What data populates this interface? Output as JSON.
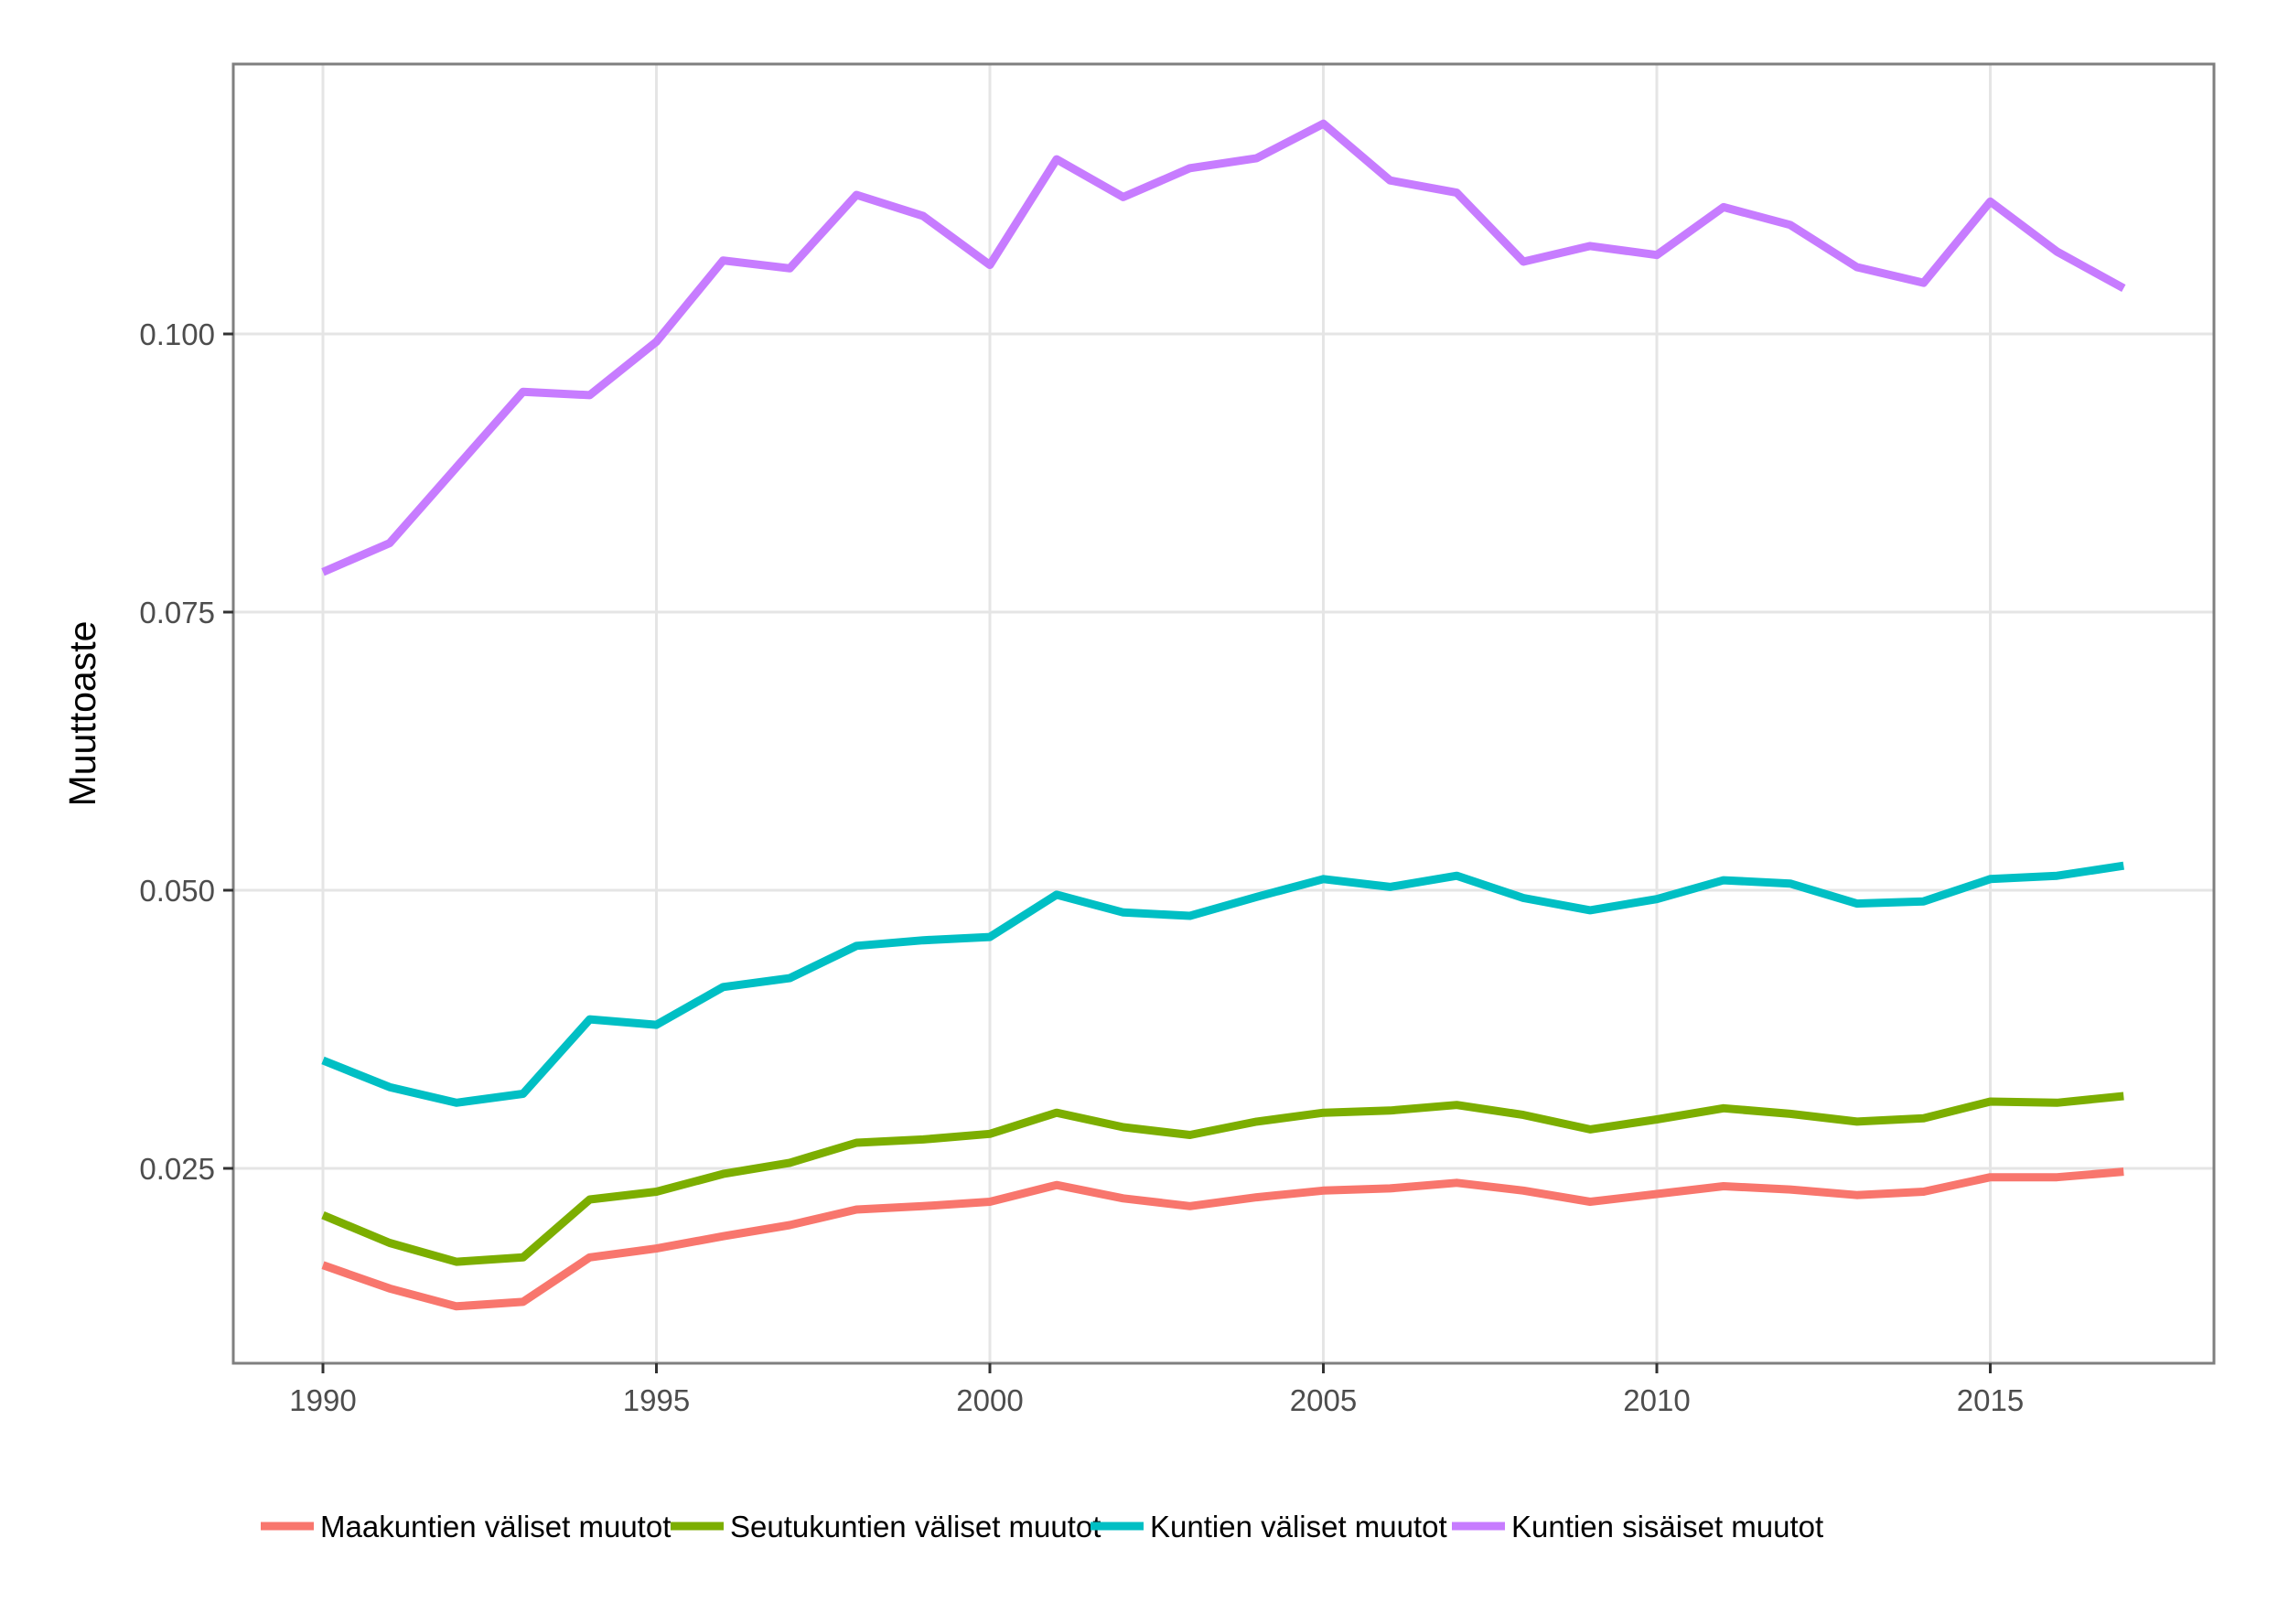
{
  "chart_data": {
    "type": "line",
    "title": "",
    "xlabel": "",
    "ylabel": "Muuttoaste",
    "x": [
      1990,
      1991,
      1992,
      1993,
      1994,
      1995,
      1996,
      1997,
      1998,
      1999,
      2000,
      2001,
      2002,
      2003,
      2004,
      2005,
      2006,
      2007,
      2008,
      2009,
      2010,
      2011,
      2012,
      2013,
      2014,
      2015,
      2016,
      2017
    ],
    "xlim": [
      1987.4,
      2017
    ],
    "ylim": [
      0.0083,
      0.1328
    ],
    "x_ticks": [
      {
        "value": 1990,
        "label": "1990"
      },
      {
        "value": 1995,
        "label": "1995"
      },
      {
        "value": 2000,
        "label": "2000"
      },
      {
        "value": 2005,
        "label": "2005"
      },
      {
        "value": 2010,
        "label": "2010"
      },
      {
        "value": 2015,
        "label": "2015"
      }
    ],
    "y_ticks": [
      {
        "value": 0.025,
        "label": "0.025"
      },
      {
        "value": 0.05,
        "label": "0.050"
      },
      {
        "value": 0.075,
        "label": "0.075"
      },
      {
        "value": 0.1,
        "label": "0.100"
      }
    ],
    "grid": true,
    "legend_position": "bottom",
    "series": [
      {
        "name": "Maakuntien väliset muutot",
        "color": "#F8766D",
        "values": [
          0.0163,
          0.0142,
          0.0126,
          0.013,
          0.017,
          0.0178,
          0.0189,
          0.0199,
          0.0213,
          0.0216,
          0.022,
          0.0235,
          0.0223,
          0.0216,
          0.0224,
          0.023,
          0.0232,
          0.0237,
          0.023,
          0.022,
          0.0227,
          0.0234,
          0.0231,
          0.0226,
          0.0229,
          0.0242,
          0.0242,
          0.0247
        ]
      },
      {
        "name": "Seutukuntien väliset muutot",
        "color": "#7CAE00",
        "values": [
          0.0208,
          0.0183,
          0.0166,
          0.017,
          0.0222,
          0.0229,
          0.0245,
          0.0255,
          0.0273,
          0.0276,
          0.0281,
          0.03,
          0.0287,
          0.028,
          0.0292,
          0.03,
          0.0302,
          0.0307,
          0.0298,
          0.0285,
          0.0294,
          0.0304,
          0.0299,
          0.0292,
          0.0295,
          0.031,
          0.0309,
          0.0315
        ]
      },
      {
        "name": "Kuntien väliset muutot",
        "color": "#00BFC4",
        "values": [
          0.0347,
          0.0323,
          0.0309,
          0.0317,
          0.0384,
          0.0379,
          0.0413,
          0.0421,
          0.045,
          0.0455,
          0.0458,
          0.0496,
          0.048,
          0.0477,
          0.0494,
          0.051,
          0.0503,
          0.0513,
          0.0493,
          0.0482,
          0.0492,
          0.0509,
          0.0506,
          0.0488,
          0.049,
          0.051,
          0.0513,
          0.0522
        ]
      },
      {
        "name": "Kuntien sisäiset muutot",
        "color": "#C77CFF",
        "values": [
          0.0786,
          0.0812,
          0.088,
          0.0948,
          0.0945,
          0.0993,
          0.1066,
          0.1059,
          0.1125,
          0.1106,
          0.1062,
          0.1157,
          0.1123,
          0.1149,
          0.1158,
          0.1189,
          0.1138,
          0.1127,
          0.1065,
          0.1079,
          0.1071,
          0.1114,
          0.1098,
          0.106,
          0.1046,
          0.1119,
          0.1074,
          0.1041
        ]
      }
    ]
  }
}
